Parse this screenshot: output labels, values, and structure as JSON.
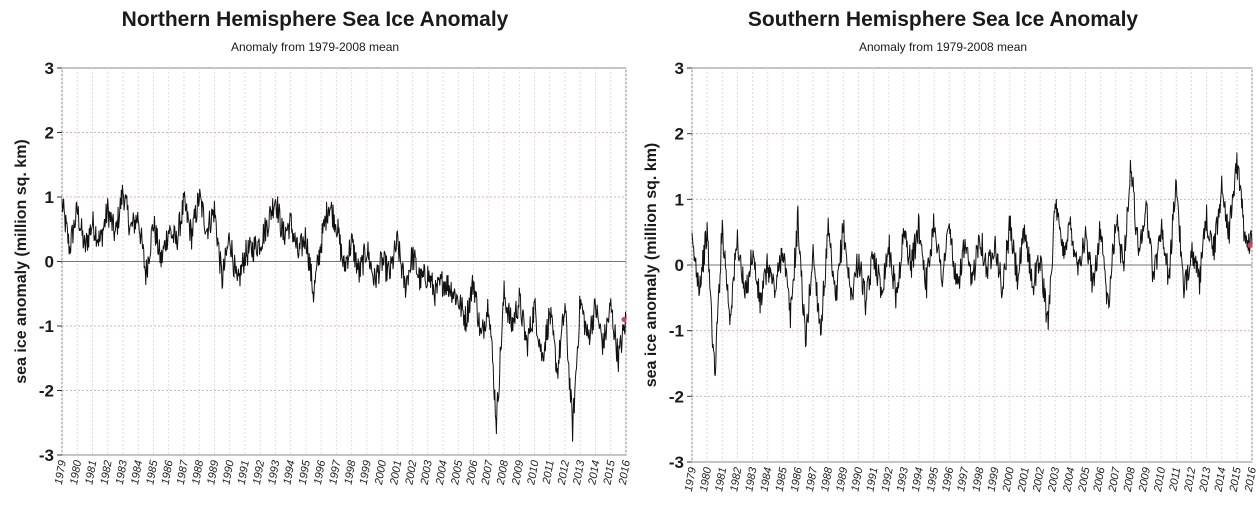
{
  "charts": [
    {
      "title": "Northern Hemisphere Sea Ice Anomaly",
      "subtitle": "Anomaly from 1979-2008 mean",
      "ylabel": "sea ice anomaly (million sq. km)",
      "yticks": [
        "3",
        "2",
        "1",
        "0",
        "-1",
        "-2",
        "-3"
      ],
      "xticks": [
        "1979",
        "1980",
        "1981",
        "1982",
        "1983",
        "1984",
        "1985",
        "1986",
        "1987",
        "1988",
        "1989",
        "1990",
        "1991",
        "1992",
        "1993",
        "1994",
        "1995",
        "1996",
        "1997",
        "1998",
        "1999",
        "2000",
        "2001",
        "2002",
        "2003",
        "2004",
        "2005",
        "2006",
        "2007",
        "2008",
        "2009",
        "2010",
        "2011",
        "2012",
        "2013",
        "2014",
        "2015",
        "2016"
      ]
    },
    {
      "title": "Southern Hemisphere Sea Ice Anomaly",
      "subtitle": "Anomaly from 1979-2008 mean",
      "ylabel": "sea ice anomaly (million sq. km)",
      "yticks": [
        "3",
        "2",
        "1",
        "0",
        "-1",
        "-2",
        "-3"
      ],
      "xticks": [
        "1979",
        "1980",
        "1981",
        "1982",
        "1983",
        "1984",
        "1985",
        "1986",
        "1987",
        "1988",
        "1989",
        "1990",
        "1991",
        "1992",
        "1993",
        "1994",
        "1995",
        "1996",
        "1997",
        "1998",
        "1999",
        "2000",
        "2001",
        "2002",
        "2003",
        "2004",
        "2005",
        "2006",
        "2007",
        "2008",
        "2009",
        "2010",
        "2011",
        "2012",
        "2013",
        "2014",
        "2015",
        "2016"
      ]
    }
  ],
  "chart_data": [
    {
      "type": "line",
      "title": "Northern Hemisphere Sea Ice Anomaly",
      "subtitle": "Anomaly from 1979-2008 mean",
      "xlabel": "",
      "ylabel": "sea ice anomaly (million sq. km)",
      "xlim": [
        1979,
        2016
      ],
      "ylim": [
        -3,
        3
      ],
      "grid": true,
      "zero_line": true,
      "latest_marker_color": "#d9405a",
      "line_color": "#111111",
      "series": [
        {
          "x": [
            1979.0,
            1979.5,
            1980.0,
            1980.5,
            1981.0,
            1981.5,
            1982.0,
            1982.5,
            1983.0,
            1983.5,
            1984.0,
            1984.5,
            1985.0,
            1985.5,
            1986.0,
            1986.5,
            1987.0,
            1987.5,
            1988.0,
            1988.5,
            1989.0,
            1989.5,
            1990.0,
            1990.5,
            1991.0,
            1991.5,
            1992.0,
            1992.5,
            1993.0,
            1993.5,
            1994.0,
            1994.5,
            1995.0,
            1995.5,
            1996.0,
            1996.5,
            1997.0,
            1997.5,
            1998.0,
            1998.5,
            1999.0,
            1999.5,
            2000.0,
            2000.5,
            2001.0,
            2001.5,
            2002.0,
            2002.5,
            2003.0,
            2003.5,
            2004.0,
            2004.5,
            2005.0,
            2005.5,
            2006.0,
            2006.5,
            2007.0,
            2007.5,
            2008.0,
            2008.5,
            2009.0,
            2009.5,
            2010.0,
            2010.5,
            2011.0,
            2011.5,
            2012.0,
            2012.5,
            2013.0,
            2013.5,
            2014.0,
            2014.5,
            2015.0,
            2015.5,
            2016.0
          ],
          "values": [
            0.9,
            0.2,
            0.8,
            0.2,
            0.6,
            0.3,
            0.8,
            0.4,
            1.1,
            0.5,
            0.7,
            -0.2,
            0.6,
            0.0,
            0.5,
            0.3,
            0.9,
            0.4,
            1.0,
            0.5,
            0.8,
            -0.3,
            0.4,
            -0.4,
            0.1,
            0.2,
            0.3,
            0.6,
            1.0,
            0.4,
            0.6,
            0.1,
            0.4,
            -0.5,
            0.3,
            0.9,
            0.6,
            -0.1,
            0.3,
            -0.2,
            0.2,
            -0.3,
            0.0,
            -0.2,
            0.3,
            -0.4,
            0.1,
            -0.3,
            -0.2,
            -0.5,
            -0.3,
            -0.4,
            -0.6,
            -0.9,
            -0.3,
            -1.2,
            -0.6,
            -2.5,
            -0.5,
            -1.0,
            -0.6,
            -1.3,
            -0.7,
            -1.5,
            -0.8,
            -1.7,
            -0.7,
            -2.6,
            -0.6,
            -1.2,
            -0.7,
            -1.3,
            -0.7,
            -1.5,
            -0.9
          ]
        }
      ]
    },
    {
      "type": "line",
      "title": "Southern Hemisphere Sea Ice Anomaly",
      "subtitle": "Anomaly from 1979-2008 mean",
      "xlabel": "",
      "ylabel": "sea ice anomaly (million sq. km)",
      "xlim": [
        1979,
        2016
      ],
      "ylim": [
        -3,
        3
      ],
      "grid": true,
      "zero_line": true,
      "latest_marker_color": "#d9405a",
      "line_color": "#111111",
      "series": [
        {
          "x": [
            1979.0,
            1979.5,
            1980.0,
            1980.5,
            1981.0,
            1981.5,
            1982.0,
            1982.5,
            1983.0,
            1983.5,
            1984.0,
            1984.5,
            1985.0,
            1985.5,
            1986.0,
            1986.5,
            1987.0,
            1987.5,
            1988.0,
            1988.5,
            1989.0,
            1989.5,
            1990.0,
            1990.5,
            1991.0,
            1991.5,
            1992.0,
            1992.5,
            1993.0,
            1993.5,
            1994.0,
            1994.5,
            1995.0,
            1995.5,
            1996.0,
            1996.5,
            1997.0,
            1997.5,
            1998.0,
            1998.5,
            1999.0,
            1999.5,
            2000.0,
            2000.5,
            2001.0,
            2001.5,
            2002.0,
            2002.5,
            2003.0,
            2003.5,
            2004.0,
            2004.5,
            2005.0,
            2005.5,
            2006.0,
            2006.5,
            2007.0,
            2007.5,
            2008.0,
            2008.5,
            2009.0,
            2009.5,
            2010.0,
            2010.5,
            2011.0,
            2011.5,
            2012.0,
            2012.5,
            2013.0,
            2013.5,
            2014.0,
            2014.5,
            2015.0,
            2015.5,
            2016.0
          ],
          "values": [
            0.3,
            -0.3,
            0.5,
            -1.7,
            0.6,
            -0.8,
            0.4,
            -0.5,
            0.2,
            -0.6,
            0.0,
            -0.4,
            0.3,
            -0.8,
            0.7,
            -1.2,
            0.2,
            -1.0,
            0.5,
            -0.6,
            0.6,
            -0.5,
            0.1,
            -0.6,
            0.2,
            -0.4,
            0.3,
            -0.5,
            0.5,
            0.0,
            0.6,
            -0.3,
            0.7,
            -0.2,
            0.6,
            -0.4,
            0.3,
            -0.3,
            0.5,
            -0.1,
            0.4,
            -0.4,
            0.6,
            -0.2,
            0.5,
            -0.3,
            0.1,
            -0.9,
            0.9,
            0.2,
            0.6,
            0.0,
            0.4,
            -0.3,
            0.6,
            -0.7,
            0.7,
            0.0,
            1.5,
            0.2,
            0.9,
            -0.2,
            0.6,
            -0.2,
            1.3,
            -0.5,
            0.3,
            -0.3,
            0.7,
            0.2,
            1.2,
            0.5,
            1.6,
            0.5,
            0.3
          ]
        }
      ]
    }
  ]
}
